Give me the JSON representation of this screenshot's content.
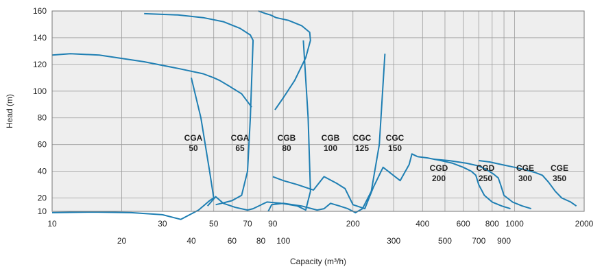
{
  "chart_data": {
    "type": "line",
    "xlabel": "Capacity (m³/h)",
    "ylabel": "Head (m)",
    "x_scale": "log",
    "xlim": [
      10,
      2000
    ],
    "ylim": [
      10,
      160
    ],
    "grid": true,
    "colors": {
      "curve": "#1f7fb3",
      "grid": "#9a9a9a",
      "plot_bg": "#eeeeee"
    },
    "x_ticks_row1": [
      "10",
      "30",
      "50",
      "70",
      "90",
      "200",
      "400",
      "600",
      "800",
      "1000",
      "2000"
    ],
    "x_ticks_row2": [
      "20",
      "40",
      "60",
      "80",
      "100",
      "300",
      "500",
      "700",
      "900"
    ],
    "y_ticks": [
      "10",
      "20",
      "40",
      "60",
      "80",
      "100",
      "120",
      "140",
      "160"
    ],
    "series": [
      {
        "name": "CGA 50",
        "label_lines": [
          "CGA",
          "50"
        ],
        "x": [
          10,
          15,
          22,
          30,
          36,
          43,
          48,
          50,
          48,
          44,
          40
        ],
        "y": [
          9,
          9.5,
          9,
          7.5,
          4,
          11,
          18,
          20,
          40,
          80,
          110
        ]
      },
      {
        "name": "CGA 65",
        "label_lines": [
          "CGA",
          "65"
        ],
        "x": [
          10,
          12,
          16,
          25,
          35,
          45,
          50,
          53,
          58,
          66,
          73
        ],
        "y": [
          127,
          128,
          127,
          122,
          117,
          113,
          110,
          108,
          104,
          98,
          88
        ]
      },
      {
        "name": "CGB 80",
        "label_lines": [
          "CGB",
          "80"
        ],
        "x": [
          25,
          35,
          45,
          55,
          65,
          72,
          74,
          72,
          70,
          66,
          60,
          54,
          51
        ],
        "y": [
          158,
          157,
          155,
          152,
          147,
          142,
          138,
          80,
          40,
          22,
          18,
          16,
          15
        ]
      },
      {
        "name": "CGB 100",
        "label_lines": [
          "CGB",
          "100"
        ],
        "x": [
          47,
          51,
          55,
          62,
          70,
          74,
          85,
          98,
          115,
          125,
          131,
          128,
          122
        ],
        "y": [
          14,
          21,
          16,
          13,
          11,
          12,
          17,
          16,
          14,
          11,
          25,
          80,
          138
        ]
      },
      {
        "name": "CGC 125",
        "label_lines": [
          "CGC",
          "125"
        ],
        "x": [
          78,
          84,
          88,
          93,
          105,
          120,
          130,
          131,
          125,
          112,
          100,
          92
        ],
        "y": [
          160,
          158,
          157,
          155,
          153,
          149,
          144,
          138,
          125,
          108,
          95,
          86
        ]
      },
      {
        "name": "CGC 150",
        "label_lines": [
          "CGC",
          "150"
        ],
        "x": [
          86,
          89,
          100,
          120,
          140,
          150,
          160,
          175,
          190,
          205,
          220,
          240,
          260,
          275
        ],
        "y": [
          10,
          15,
          16,
          14,
          11,
          12,
          16,
          14,
          12,
          9,
          12,
          25,
          60,
          128
        ]
      },
      {
        "name": "CGD 200",
        "label_lines": [
          "CGD",
          "200"
        ],
        "x": [
          90,
          100,
          115,
          135,
          150,
          170,
          185,
          200,
          225,
          245,
          270,
          320,
          350,
          360,
          380
        ],
        "y": [
          36,
          33,
          30,
          26,
          36,
          31,
          27,
          15,
          12,
          28,
          43,
          33,
          45,
          53,
          51
        ]
      },
      {
        "name": "CGD 250",
        "label_lines": [
          "CGD",
          "250"
        ],
        "x": [
          380,
          420,
          480,
          540,
          600,
          650,
          680,
          700,
          740,
          800,
          880,
          960
        ],
        "y": [
          51,
          50,
          48,
          46,
          43,
          40,
          37,
          30,
          22,
          17,
          14,
          12
        ]
      },
      {
        "name": "CGE 300",
        "label_lines": [
          "CGE",
          "300"
        ],
        "x": [
          450,
          520,
          620,
          700,
          760,
          810,
          850,
          870,
          900,
          980,
          1080,
          1180
        ],
        "y": [
          49,
          48,
          46,
          44,
          41,
          38,
          35,
          30,
          22,
          17,
          14,
          12
        ]
      },
      {
        "name": "CGE 350",
        "label_lines": [
          "CGE",
          "350"
        ],
        "x": [
          700,
          780,
          880,
          1000,
          1120,
          1230,
          1320,
          1400,
          1500,
          1600,
          1750,
          1850
        ],
        "y": [
          48,
          47,
          45,
          43,
          41,
          39,
          37,
          32,
          25,
          20,
          17,
          14
        ]
      }
    ]
  }
}
